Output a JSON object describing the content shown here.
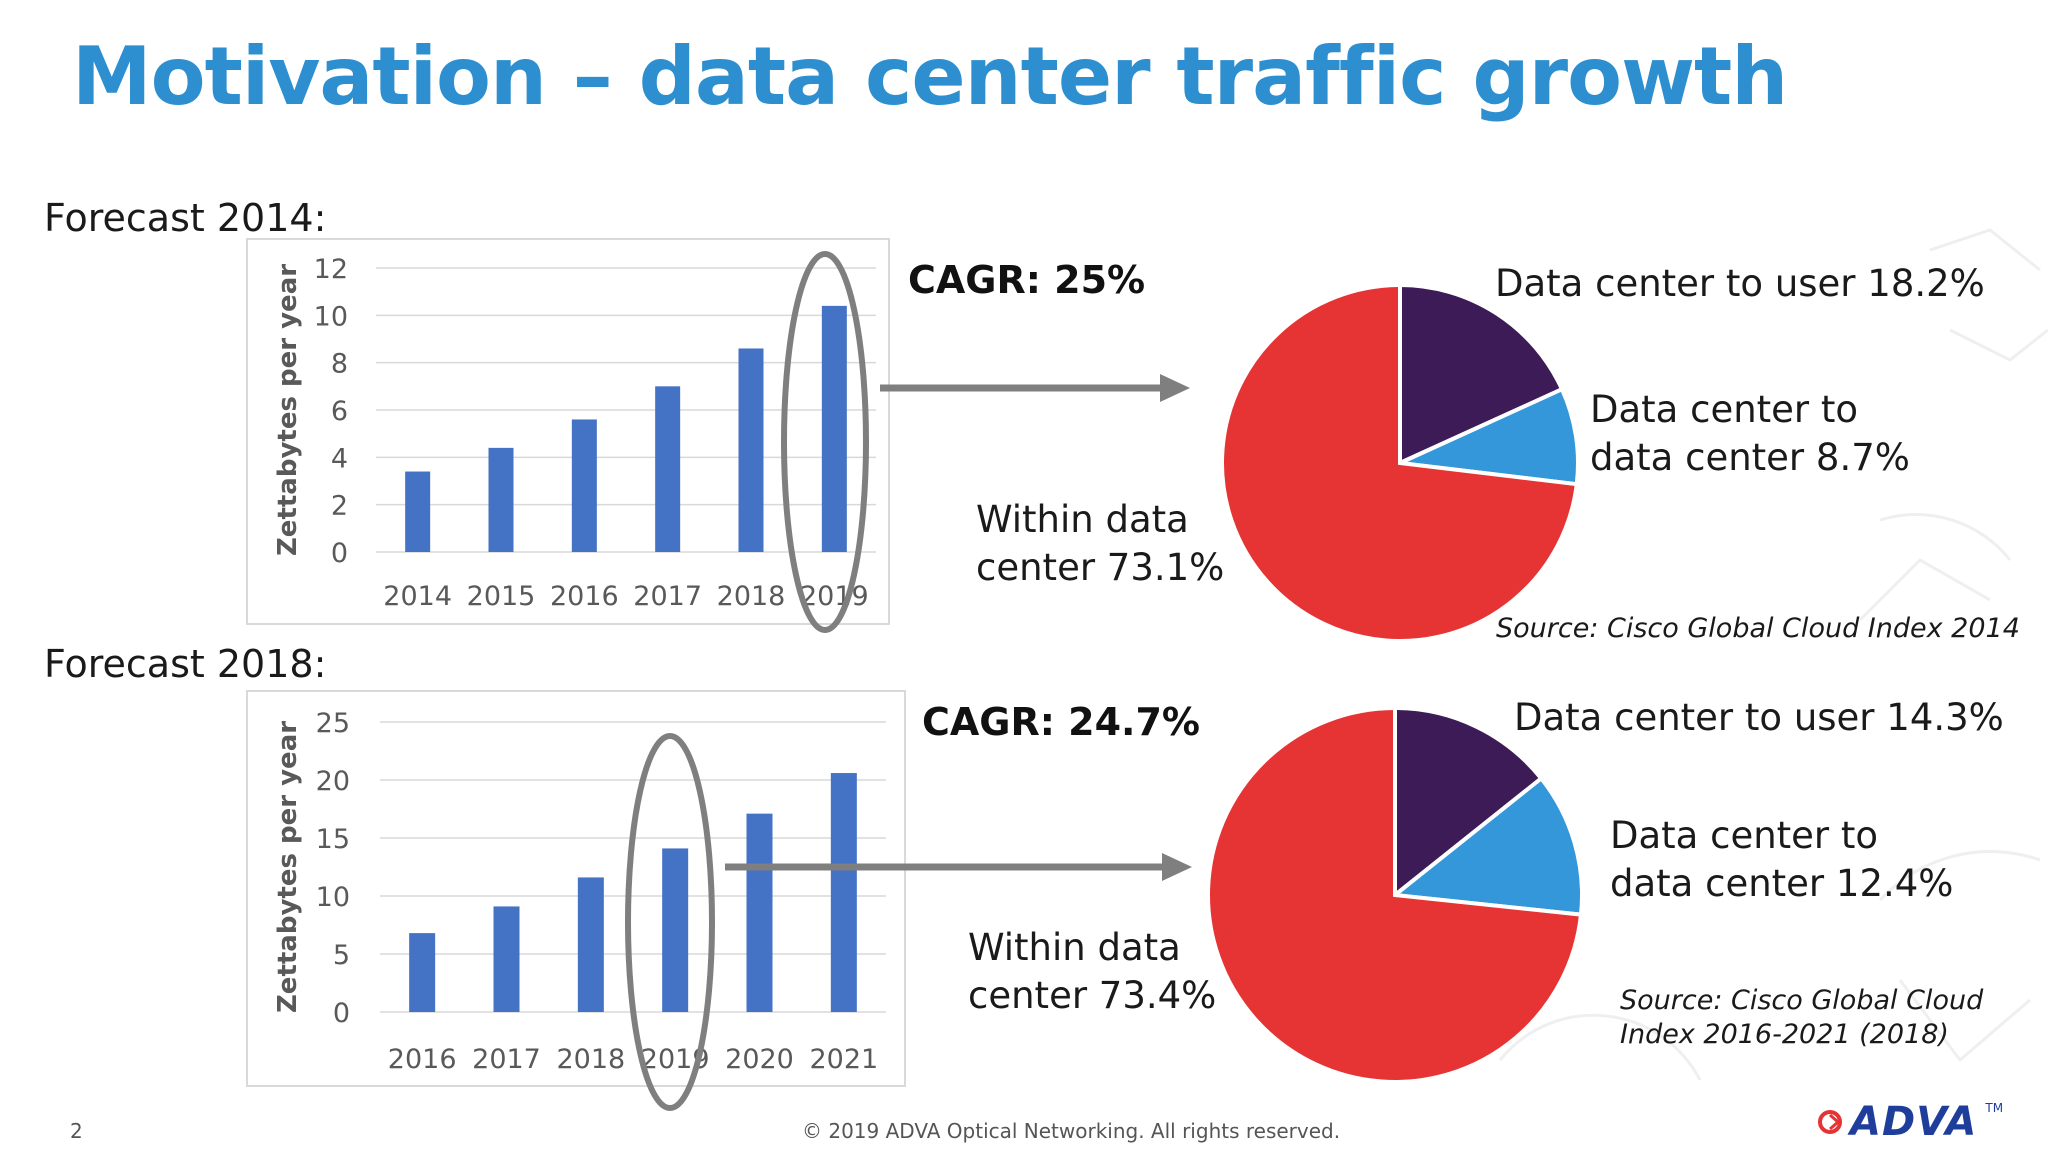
{
  "slide": {
    "title": "Motivation – data center traffic growth",
    "page_number": "2",
    "footer": "© 2019 ADVA Optical Networking. All rights reserved.",
    "logo": "ADVA",
    "logo_tm": "TM"
  },
  "colors": {
    "title": "#2d8fcf",
    "bar": "#4472c4",
    "pie_within": "#e63333",
    "pie_to_user": "#3d1b57",
    "pie_dc_to_dc": "#3497d9",
    "ellipse": "#7f7f7f",
    "arrow": "#7f7f7f"
  },
  "forecasts": [
    {
      "label": "Forecast 2014:",
      "cagr": "CAGR: 25%",
      "pie_labels": {
        "to_user": "Data center to user 18.2%",
        "dc_to_dc_line1": "Data center to",
        "dc_to_dc_line2": "data center 8.7%",
        "within_line1": "Within data",
        "within_line2": "center 73.1%"
      },
      "source_line1": "Source: Cisco Global Cloud Index 2014",
      "source_line2": ""
    },
    {
      "label": "Forecast 2018:",
      "cagr": "CAGR: 24.7%",
      "pie_labels": {
        "to_user": "Data center to user 14.3%",
        "dc_to_dc_line1": "Data center to",
        "dc_to_dc_line2": "data center 12.4%",
        "within_line1": "Within data",
        "within_line2": "center 73.4%"
      },
      "source_line1": "Source: Cisco Global Cloud",
      "source_line2": "Index 2016-2021 (2018)"
    }
  ],
  "chart_data": [
    {
      "type": "bar",
      "categories": [
        "2014",
        "2015",
        "2016",
        "2017",
        "2018",
        "2019"
      ],
      "values": [
        3.4,
        4.4,
        5.6,
        7.0,
        8.6,
        10.4
      ],
      "title": "",
      "xlabel": "",
      "ylabel": "Zettabytes per year",
      "ylim": [
        0,
        12
      ],
      "yticks": [
        "0",
        "2",
        "4",
        "6",
        "8",
        "10",
        "12"
      ],
      "grid": true,
      "highlighted_category": "2019"
    },
    {
      "type": "pie",
      "categories": [
        "Within data center",
        "Data center to user",
        "Data center to data center"
      ],
      "values": [
        73.1,
        18.2,
        8.7
      ]
    },
    {
      "type": "bar",
      "categories": [
        "2016",
        "2017",
        "2018",
        "2019",
        "2020",
        "2021"
      ],
      "values": [
        6.8,
        9.1,
        11.6,
        14.1,
        17.1,
        20.6
      ],
      "title": "",
      "xlabel": "",
      "ylabel": "Zettabytes per year",
      "ylim": [
        0,
        25
      ],
      "yticks": [
        "0",
        "5",
        "10",
        "15",
        "20",
        "25"
      ],
      "grid": true,
      "highlighted_category": "2019"
    },
    {
      "type": "pie",
      "categories": [
        "Within data center",
        "Data center to user",
        "Data center to data center"
      ],
      "values": [
        73.4,
        14.3,
        12.4
      ]
    }
  ]
}
